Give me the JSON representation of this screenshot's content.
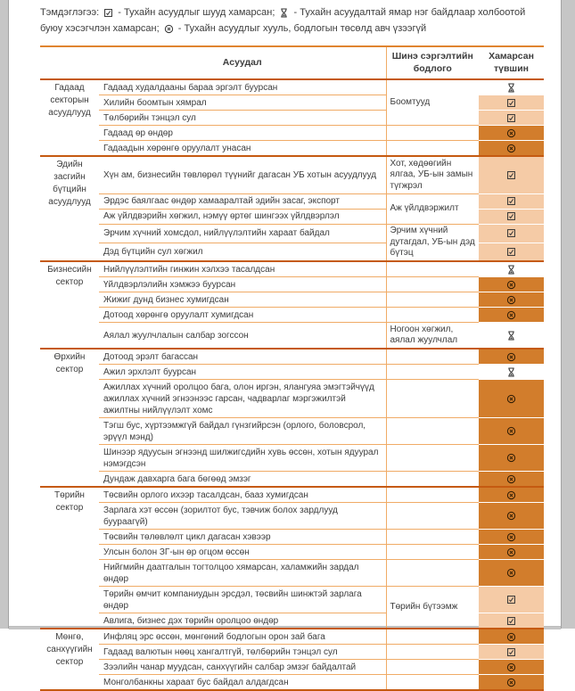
{
  "legend": {
    "prefix": "Тэмдэглэгээ:",
    "items": [
      {
        "icon": "checkbox-checked-icon",
        "text": "- Тухайн асуудлыг шууд хамарсан;"
      },
      {
        "icon": "hourglass-icon",
        "text": "- Тухайн асуудалтай ямар нэг байдлаар холбоотой буюу хэсэгчлэн хамарсан;"
      },
      {
        "icon": "circled-x-icon",
        "text": "- Тухайн асуудлыг хууль, бодлогын төсөлд авч үзээгүй"
      }
    ]
  },
  "table": {
    "headers": {
      "issue": "Асуудал",
      "policy": "Шинэ сэргэлтийн бодлого",
      "level": "Хамарсан түвшин"
    },
    "level_icons": {
      "covered": "checkbox-checked-icon",
      "partial": "hourglass-icon",
      "excluded": "circled-x-icon"
    },
    "colors": {
      "fill_light": "#f5cba6",
      "fill_dark": "#d27d2c",
      "line_thin": "#f0ab66",
      "line_thick": "#c55a11",
      "page_edge": "#c6c6c6",
      "text": "#3d3d3d"
    },
    "groups": [
      {
        "label": "Гадаад секторын асуудлууд",
        "rows": [
          {
            "issue": "Гадаад худалдааны бараа эргэлт буурсан",
            "policy": {
              "text": "Боомтууд",
              "span": 3
            },
            "level": "partial"
          },
          {
            "issue": "Хилийн боомтын хямрал",
            "level": "covered"
          },
          {
            "issue": "Төлбөрийн тэнцэл сул",
            "level": "covered"
          },
          {
            "issue": "Гадаад өр өндөр",
            "level": "excluded"
          },
          {
            "issue": "Гадаадын хөрөнгө оруулалт унасан",
            "level": "excluded"
          }
        ]
      },
      {
        "label": "Эдийн засгийн бүтцийн асуудлууд",
        "rows": [
          {
            "issue": "Хүн ам, бизнесийн төвлөрөл түүнийг дагасан УБ хотын асуудлууд",
            "policy": {
              "text": "Хот, хөдөөгийн ялгаа, УБ-ын замын түгжрэл",
              "span": 1
            },
            "level": "covered"
          },
          {
            "issue": "Эрдэс баялгаас өндөр хамааралтай эдийн засаг, экспорт",
            "policy": {
              "text": "Аж үйлдвэржилт",
              "span": 2
            },
            "level": "covered"
          },
          {
            "issue": "Аж үйлдвэрийн хөгжил, нэмүү өртөг шингээх үйлдвэрлэл",
            "level": "covered"
          },
          {
            "issue": "Эрчим хүчний хомсдол, нийлүүлэлтийн хараат байдал",
            "policy": {
              "text": "Эрчим хүчний дутагдал, УБ-ын дэд бүтэц",
              "span": 2
            },
            "level": "covered"
          },
          {
            "issue": "Дэд бүтцийн сул хөгжил",
            "level": "covered"
          }
        ]
      },
      {
        "label": "Бизнесийн сектор",
        "rows": [
          {
            "issue": "Нийлүүлэлтийн гинжин хэлхээ тасалдсан",
            "level": "partial"
          },
          {
            "issue": "Үйлдвэрлэлийн хэмжээ буурсан",
            "level": "excluded"
          },
          {
            "issue": "Жижиг дунд бизнес хумигдсан",
            "level": "excluded"
          },
          {
            "issue": "Дотоод хөрөнгө оруулалт хумигдсан",
            "level": "excluded"
          },
          {
            "issue": "Аялал жуулчлалын салбар зогссон",
            "policy": {
              "text": "Ногоон хөгжил, аялал жуулчлал",
              "span": 1
            },
            "level": "partial"
          }
        ]
      },
      {
        "label": "Өрхийн сектор",
        "rows": [
          {
            "issue": "Дотоод эрэлт багассан",
            "level": "excluded"
          },
          {
            "issue": "Ажил эрхлэлт буурсан",
            "level": "partial"
          },
          {
            "issue": "Ажиллах хүчний оролцоо бага, олон иргэн, ялангуяа эмэгтэйчүүд ажиллах хүчний эгнээнээс гарсан, чадварлаг мэргэжилтэй ажилтны нийлүүлэлт хомс",
            "level": "excluded"
          },
          {
            "issue": "Тэгш бус, хүртээмжгүй байдал гүнзгийрсэн (орлого, боловсрол, эрүүл мэнд)",
            "level": "excluded"
          },
          {
            "issue": "Шинээр ядуусын эгнээнд шилжигсдийн хувь өссөн, хотын ядуурал нэмэгдсэн",
            "level": "excluded"
          },
          {
            "issue": "Дундаж давхарга бага бөгөөд эмзэг",
            "level": "excluded"
          }
        ]
      },
      {
        "label": "Төрийн сектор",
        "rows": [
          {
            "issue": "Төсвийн орлого ихээр тасалдсан, бааз хумигдсан",
            "level": "excluded"
          },
          {
            "issue": "Зарлага хэт өссөн (зорилтот бус, тэвчиж болох зардлууд буураагүй)",
            "level": "excluded"
          },
          {
            "issue": "Төсвийн төлөвлөлт цикл дагасан хэвээр",
            "level": "excluded"
          },
          {
            "issue": "Улсын болон ЗГ-ын өр огцом өссөн",
            "level": "excluded"
          },
          {
            "issue": "Нийгмийн даатгалын тогтолцоо хямарсан, халамжийн зардал өндөр",
            "level": "excluded"
          },
          {
            "issue": "Төрийн өмчит компаниудын эрсдэл, төсвийн шинжтэй зарлага өндөр",
            "policy": {
              "text": "Төрийн бүтээмж",
              "span": 2
            },
            "level": "covered"
          },
          {
            "issue": "Авлига, бизнес дэх төрийн оролцоо өндөр",
            "level": "covered"
          }
        ]
      },
      {
        "label": "Мөнгө, санхүүгийн сектор",
        "rows": [
          {
            "issue": "Инфляц эрс өссөн, мөнгөний бодлогын орон зай бага",
            "level": "excluded"
          },
          {
            "issue": "Гадаад валютын нөөц хангалтгүй, төлбөрийн тэнцэл сул",
            "level": "covered"
          },
          {
            "issue": "Зээлийн чанар муудсан, санхүүгийн салбар эмзэг байдалтай",
            "level": "excluded"
          },
          {
            "issue": "Монголбанкны хараат бус байдал алдагдсан",
            "level": "excluded"
          }
        ]
      }
    ]
  }
}
